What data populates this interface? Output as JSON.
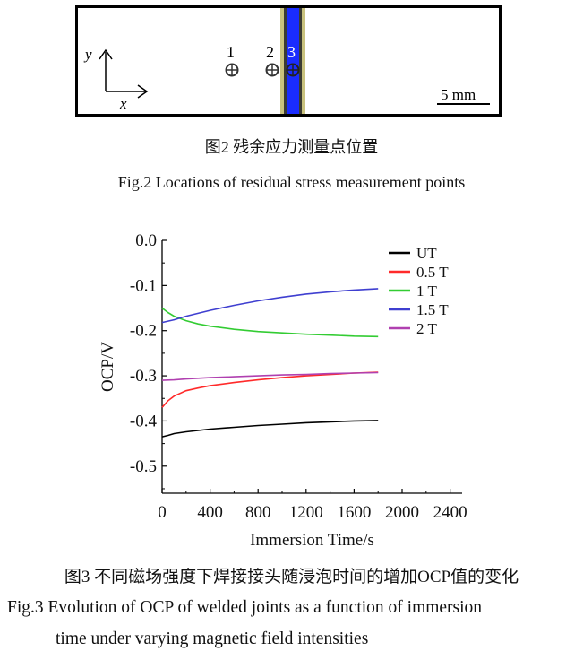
{
  "fig2": {
    "points": [
      "1",
      "2",
      "3"
    ],
    "axis_y": "y",
    "axis_x": "x",
    "scale_bar": "5 mm",
    "caption_cn": "图2  残余应力测量点位置",
    "caption_en": "Fig.2  Locations of residual stress measurement points"
  },
  "fig3": {
    "caption_cn": "图3  不同磁场强度下焊接接头随浸泡时间的增加OCP值的变化",
    "caption_en_line1": "Fig.3  Evolution of OCP of welded joints as a function of immersion",
    "caption_en_line2": "time under varying magnetic field intensities"
  },
  "chart_data": {
    "type": "line",
    "xlabel": "Immersion Time/s",
    "ylabel": "OCP/V",
    "xlim": [
      0,
      2500
    ],
    "ylim": [
      -0.56,
      0.0
    ],
    "xticks": [
      0,
      400,
      800,
      1200,
      1600,
      2000,
      2400
    ],
    "xtick_labels": [
      "0",
      "400",
      "800",
      "1200",
      "1600",
      "2000",
      "2400"
    ],
    "yticks": [
      0.0,
      -0.1,
      -0.2,
      -0.3,
      -0.4,
      -0.5
    ],
    "ytick_labels": [
      "0.0",
      "-0.1",
      "-0.2",
      "-0.3",
      "-0.4",
      "-0.5"
    ],
    "grid": false,
    "legend_position": "top-right",
    "series": [
      {
        "name": "UT",
        "color": "#000000",
        "x": [
          0,
          50,
          100,
          200,
          400,
          600,
          800,
          1000,
          1200,
          1400,
          1600,
          1800
        ],
        "y": [
          -0.435,
          -0.432,
          -0.428,
          -0.424,
          -0.418,
          -0.414,
          -0.41,
          -0.407,
          -0.404,
          -0.402,
          -0.4,
          -0.399
        ]
      },
      {
        "name": "0.5 T",
        "color": "#ff2a2a",
        "x": [
          0,
          50,
          100,
          200,
          300,
          400,
          600,
          800,
          1000,
          1200,
          1400,
          1600,
          1800
        ],
        "y": [
          -0.37,
          -0.355,
          -0.345,
          -0.333,
          -0.327,
          -0.322,
          -0.315,
          -0.309,
          -0.304,
          -0.3,
          -0.297,
          -0.294,
          -0.292
        ]
      },
      {
        "name": "1 T",
        "color": "#33cc33",
        "x": [
          0,
          50,
          100,
          200,
          300,
          400,
          600,
          800,
          1000,
          1200,
          1400,
          1600,
          1800
        ],
        "y": [
          -0.15,
          -0.16,
          -0.168,
          -0.178,
          -0.185,
          -0.19,
          -0.197,
          -0.202,
          -0.205,
          -0.208,
          -0.21,
          -0.212,
          -0.213
        ]
      },
      {
        "name": "1.5 T",
        "color": "#3f3fd0",
        "x": [
          0,
          100,
          200,
          400,
          600,
          800,
          1000,
          1200,
          1400,
          1600,
          1800
        ],
        "y": [
          -0.182,
          -0.176,
          -0.168,
          -0.155,
          -0.144,
          -0.134,
          -0.126,
          -0.119,
          -0.114,
          -0.11,
          -0.107
        ]
      },
      {
        "name": "2 T",
        "color": "#b040b0",
        "x": [
          0,
          100,
          200,
          400,
          600,
          800,
          1000,
          1200,
          1400,
          1600,
          1800
        ],
        "y": [
          -0.31,
          -0.309,
          -0.307,
          -0.304,
          -0.302,
          -0.3,
          -0.298,
          -0.297,
          -0.295,
          -0.294,
          -0.293
        ]
      }
    ]
  }
}
